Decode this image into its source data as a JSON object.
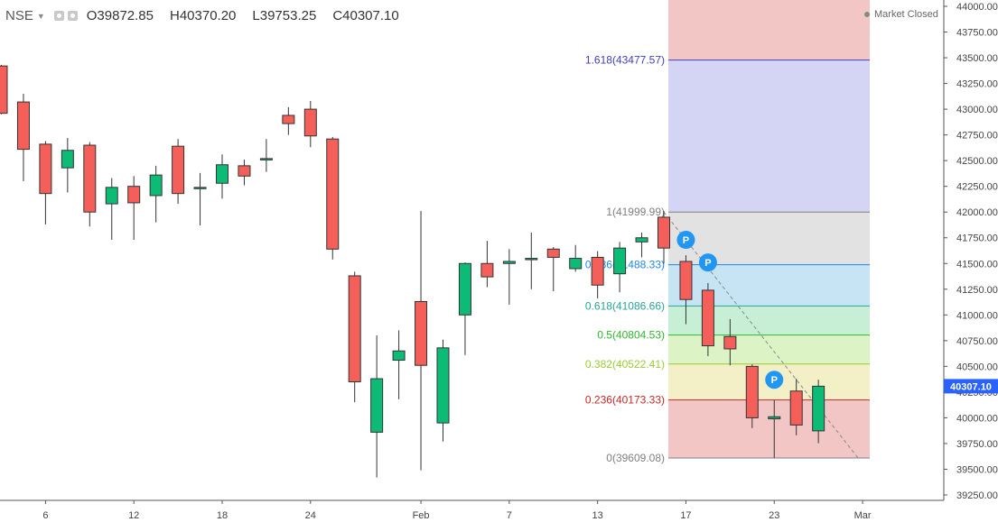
{
  "header": {
    "symbol": "NSE",
    "open": "O39872.85",
    "high": "H40370.20",
    "low": "L39753.25",
    "close": "C40307.10",
    "icons": [
      "chevron-down-icon",
      "settings-icon",
      "gear-icon"
    ]
  },
  "status": {
    "market": "Market Closed",
    "dot_color": "#8a8a8a"
  },
  "colors": {
    "up": "#0cbb76",
    "down": "#f45f5a",
    "price_tag": "#2962ff",
    "pivot": "#2196f3"
  },
  "price_tag": "40307.10",
  "chart_data": {
    "type": "candlestick",
    "ylim": [
      39150,
      44050
    ],
    "y_ticks": [
      39250,
      39500,
      39750,
      40000,
      40250,
      40500,
      40750,
      41000,
      41250,
      41500,
      41750,
      42000,
      42250,
      42500,
      42750,
      43000,
      43250,
      43500,
      43750,
      44000
    ],
    "y_tick_labels": [
      "39250.00",
      "39500.00",
      "39750.00",
      "40000.00",
      "40250.00",
      "40500.00",
      "40750.00",
      "41000.00",
      "41250.00",
      "41500.00",
      "41750.00",
      "42000.00",
      "42250.00",
      "42500.00",
      "42750.00",
      "43000.00",
      "43250.00",
      "43500.00",
      "43750.00",
      "44000.00"
    ],
    "x_ticks": [
      {
        "label": "6",
        "index": 2
      },
      {
        "label": "12",
        "index": 6
      },
      {
        "label": "18",
        "index": 10
      },
      {
        "label": "24",
        "index": 14
      },
      {
        "label": "Feb",
        "index": 19
      },
      {
        "label": "7",
        "index": 23
      },
      {
        "label": "13",
        "index": 27
      },
      {
        "label": "17",
        "index": 31
      },
      {
        "label": "23",
        "index": 35
      },
      {
        "label": "Mar",
        "index": 39
      }
    ],
    "candles": [
      {
        "o": 43420,
        "h": 43430,
        "l": 42950,
        "c": 42960
      },
      {
        "o": 43070,
        "h": 43150,
        "l": 42300,
        "c": 42610
      },
      {
        "o": 42660,
        "h": 42690,
        "l": 41880,
        "c": 42180
      },
      {
        "o": 42430,
        "h": 42720,
        "l": 42190,
        "c": 42600
      },
      {
        "o": 42650,
        "h": 42680,
        "l": 41860,
        "c": 42000
      },
      {
        "o": 42080,
        "h": 42330,
        "l": 41730,
        "c": 42240
      },
      {
        "o": 42250,
        "h": 42350,
        "l": 41730,
        "c": 42090
      },
      {
        "o": 42160,
        "h": 42450,
        "l": 41900,
        "c": 42360
      },
      {
        "o": 42640,
        "h": 42710,
        "l": 42080,
        "c": 42180
      },
      {
        "o": 42230,
        "h": 42380,
        "l": 41870,
        "c": 42240
      },
      {
        "o": 42280,
        "h": 42560,
        "l": 42130,
        "c": 42460
      },
      {
        "o": 42450,
        "h": 42510,
        "l": 42260,
        "c": 42350
      },
      {
        "o": 42510,
        "h": 42710,
        "l": 42390,
        "c": 42520
      },
      {
        "o": 42940,
        "h": 43020,
        "l": 42750,
        "c": 42860
      },
      {
        "o": 43000,
        "h": 43080,
        "l": 42630,
        "c": 42740
      },
      {
        "o": 42710,
        "h": 42730,
        "l": 41540,
        "c": 41640
      },
      {
        "o": 41380,
        "h": 41420,
        "l": 40150,
        "c": 40350
      },
      {
        "o": 39860,
        "h": 40800,
        "l": 39420,
        "c": 40380
      },
      {
        "o": 40560,
        "h": 40850,
        "l": 40180,
        "c": 40650
      },
      {
        "o": 41130,
        "h": 42010,
        "l": 39490,
        "c": 40510
      },
      {
        "o": 39950,
        "h": 40760,
        "l": 39770,
        "c": 40680
      },
      {
        "o": 41000,
        "h": 41510,
        "l": 40610,
        "c": 41500
      },
      {
        "o": 41500,
        "h": 41720,
        "l": 41270,
        "c": 41370
      },
      {
        "o": 41500,
        "h": 41640,
        "l": 41100,
        "c": 41520
      },
      {
        "o": 41550,
        "h": 41800,
        "l": 41250,
        "c": 41550
      },
      {
        "o": 41640,
        "h": 41660,
        "l": 41230,
        "c": 41560
      },
      {
        "o": 41450,
        "h": 41680,
        "l": 41420,
        "c": 41550
      },
      {
        "o": 41560,
        "h": 41620,
        "l": 41160,
        "c": 41290
      },
      {
        "o": 41400,
        "h": 41710,
        "l": 41220,
        "c": 41650
      },
      {
        "o": 41710,
        "h": 41800,
        "l": 41560,
        "c": 41750
      },
      {
        "o": 41950,
        "h": 42010,
        "l": 41500,
        "c": 41650
      },
      {
        "o": 41520,
        "h": 41580,
        "l": 40910,
        "c": 41150
      },
      {
        "o": 41240,
        "h": 41310,
        "l": 40600,
        "c": 40700
      },
      {
        "o": 40790,
        "h": 40960,
        "l": 40510,
        "c": 40670
      },
      {
        "o": 40500,
        "h": 40520,
        "l": 39900,
        "c": 40000
      },
      {
        "o": 39990,
        "h": 40170,
        "l": 39610,
        "c": 40010
      },
      {
        "o": 40260,
        "h": 40380,
        "l": 39830,
        "c": 39930
      },
      {
        "o": 39873,
        "h": 40370,
        "l": 39753,
        "c": 40307
      }
    ],
    "fibonacci": {
      "levels": [
        {
          "ratio": "0",
          "label": "0(39609.08)",
          "price": 39609.08,
          "color": "#808080",
          "fill": "#f3c6c6"
        },
        {
          "ratio": "0.236",
          "label": "0.236(40173.33)",
          "price": 40173.33,
          "color": "#c62828",
          "fill": "#f3efc6"
        },
        {
          "ratio": "0.382",
          "label": "0.382(40522.41)",
          "price": 40522.41,
          "color": "#9acd32",
          "fill": "#dcf3c6"
        },
        {
          "ratio": "0.5",
          "label": "0.5(40804.53)",
          "price": 40804.53,
          "color": "#2eb82e",
          "fill": "#c6efd6"
        },
        {
          "ratio": "0.618",
          "label": "0.618(41086.66)",
          "price": 41086.66,
          "color": "#26a69a",
          "fill": "#c6e4f3"
        },
        {
          "ratio": "0.786",
          "label": "0.786(41488.33)",
          "price": 41488.33,
          "color": "#1e88e5",
          "fill": "#e2e2e2"
        },
        {
          "ratio": "1",
          "label": "1(41999.99)",
          "price": 41999.99,
          "color": "#808080",
          "fill": "#d4d4f5"
        },
        {
          "ratio": "1.618",
          "label": "1.618(43477.57)",
          "price": 43477.57,
          "color": "#3f3fbf",
          "fill": "#f3c6c6"
        }
      ],
      "trend_from": {
        "index": 30,
        "price": 41999.99
      },
      "trend_to": {
        "index": 38.8,
        "price": 39609.08
      }
    },
    "pivot_markers": [
      {
        "label": "P",
        "index": 31,
        "price": 41730
      },
      {
        "label": "P",
        "index": 32,
        "price": 41510
      },
      {
        "label": "P",
        "index": 35,
        "price": 40370
      }
    ]
  }
}
